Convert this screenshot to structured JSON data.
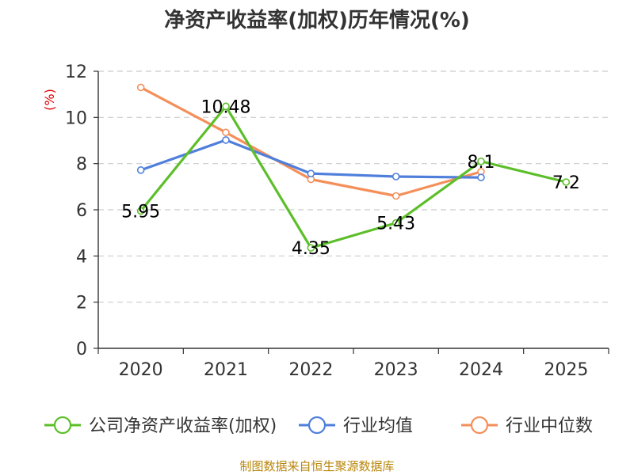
{
  "chart_data": {
    "type": "line",
    "title": "净资产收益率(加权)历年情况(%)",
    "ylabel": "(%)",
    "xlabel": "",
    "categories": [
      "2020",
      "2021",
      "2022",
      "2023",
      "2024",
      "2025"
    ],
    "ylim": [
      0,
      12
    ],
    "yticks": [
      0,
      2,
      4,
      6,
      8,
      10,
      12
    ],
    "grid": true,
    "legend_position": "bottom",
    "series": [
      {
        "name": "公司净资产收益率(加权)",
        "color": "#5cbf2a",
        "values": [
          5.95,
          10.48,
          4.35,
          5.43,
          8.1,
          7.2
        ],
        "labels": [
          "5.95",
          "10.48",
          "4.35",
          "5.43",
          "8.1",
          "7.2"
        ]
      },
      {
        "name": "行业均值",
        "color": "#4f7fdb",
        "values": [
          7.72,
          9.02,
          7.57,
          7.44,
          7.4,
          null
        ]
      },
      {
        "name": "行业中位数",
        "color": "#f58f5a",
        "values": [
          11.3,
          9.35,
          7.32,
          6.6,
          7.65,
          null
        ]
      }
    ],
    "source": "制图数据来自恒生聚源数据库"
  }
}
